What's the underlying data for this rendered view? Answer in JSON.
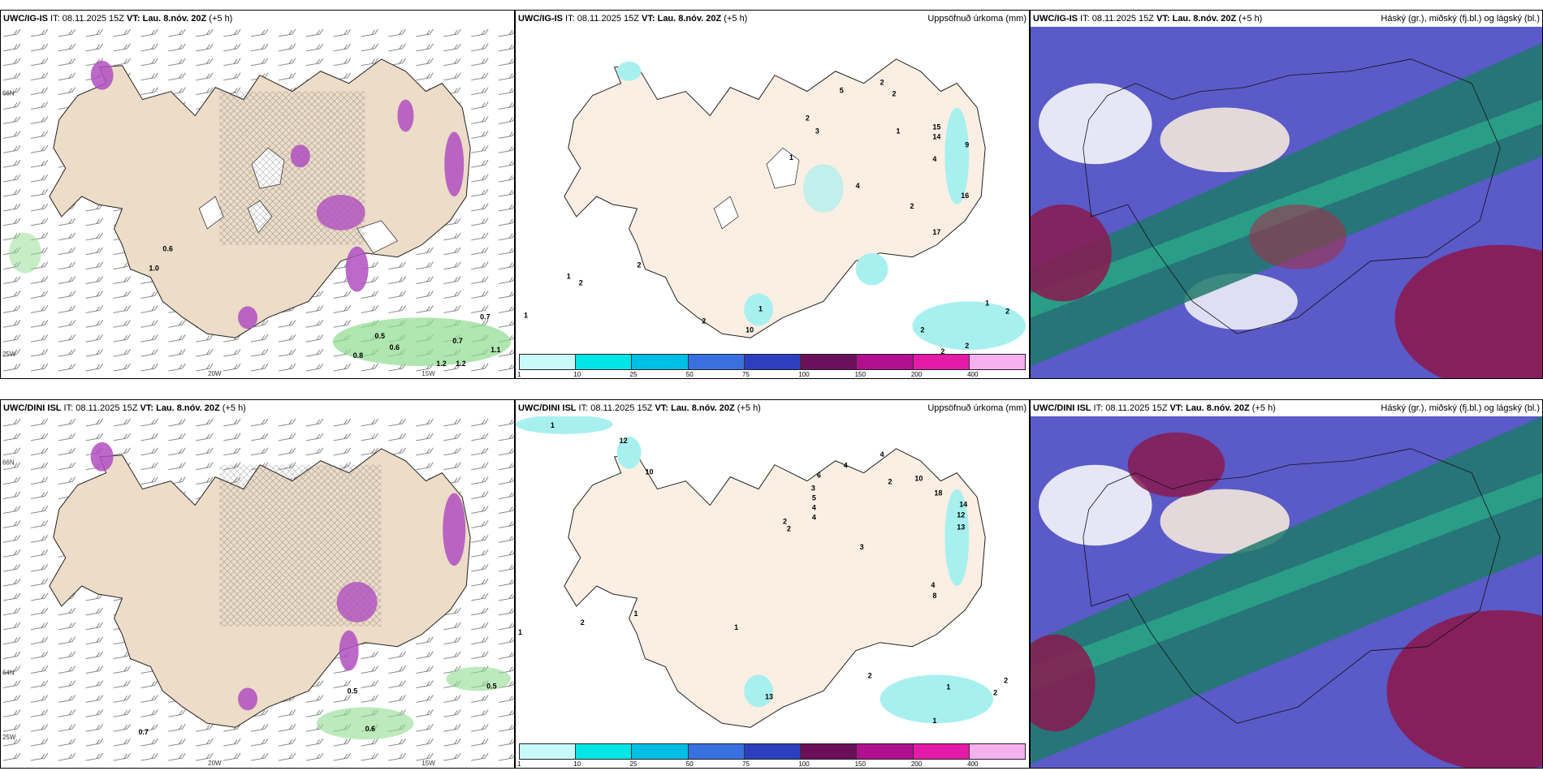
{
  "panels": {
    "top_left": {
      "model": "UWC/IG-IS",
      "rest": " IT: 08.11.2025 15Z ",
      "vt_label": "VT:",
      "vt": "Lau. 8.nóv. 20Z",
      "lead": " (+5 h)",
      "right": ""
    },
    "top_mid": {
      "model": "UWC/IG-IS",
      "rest": " IT: 08.11.2025 15Z ",
      "vt_label": "VT:",
      "vt": "Lau. 8.nóv. 20Z",
      "lead": " (+5 h)",
      "right": "Uppsöfnuð úrkoma (mm)"
    },
    "top_right": {
      "model": "UWC/IG-IS",
      "rest": " IT: 08.11.2025 15Z ",
      "vt_label": "VT:",
      "vt": "Lau. 8.nóv. 20Z",
      "lead": " (+5 h)",
      "right": "Háský (gr.), miðský (fj.bl.) og lágský (bl.)"
    },
    "bot_left": {
      "model": "UWC/DINI ISL",
      "rest": " IT: 08.11.2025 15Z ",
      "vt_label": "VT:",
      "vt": "Lau. 8.nóv. 20Z",
      "lead": " (+5 h)",
      "right": ""
    },
    "bot_mid": {
      "model": "UWC/DINI ISL",
      "rest": " IT: 08.11.2025 15Z ",
      "vt_label": "VT:",
      "vt": "Lau. 8.nóv. 20Z",
      "lead": " (+5 h)",
      "right": "Uppsöfnuð úrkoma (mm)"
    },
    "bot_right": {
      "model": "UWC/DINI ISL",
      "rest": " IT: 08.11.2025 15Z ",
      "vt_label": "VT:",
      "vt": "Lau. 8.nóv. 20Z",
      "lead": " (+5 h)",
      "right": "Háský (gr.), miðský (fj.bl.) og lágský (bl.)"
    }
  },
  "axes": {
    "lat66": "66N",
    "lat64": "64N",
    "lon20": "20W",
    "lon15": "15W",
    "lon25": "25W"
  },
  "colorbar": {
    "ticks": [
      "1",
      "10",
      "25",
      "50",
      "75",
      "100",
      "150",
      "200",
      "400"
    ],
    "colors": [
      "#c8fafa",
      "#00e5e5",
      "#00bfe6",
      "#3a6fe0",
      "#2c3fbf",
      "#6a0f5a",
      "#b0108e",
      "#e61aa8",
      "#f5b0ee"
    ]
  },
  "precip_labels_top_left": [
    "0.6",
    "1.0",
    "0.7",
    "0.5",
    "0.7",
    "0.8",
    "0.6",
    "1.1",
    "1.2",
    "1.2"
  ],
  "precip_labels_top_mid": [
    "2",
    "5",
    "2",
    "2",
    "3",
    "1",
    "15",
    "14",
    "9",
    "1",
    "4",
    "16",
    "17",
    "4",
    "2",
    "1",
    "2",
    "2",
    "1",
    "2",
    "2",
    "2",
    "2",
    "1",
    "2",
    "2",
    "2",
    "10",
    "1"
  ],
  "precip_labels_bot_left": [
    "0.5",
    "0.6",
    "0.7",
    "0.5"
  ],
  "precip_labels_bot_mid": [
    "1",
    "12",
    "10",
    "4",
    "6",
    "4",
    "2",
    "10",
    "18",
    "14",
    "12",
    "13",
    "3",
    "5",
    "4",
    "4",
    "2",
    "2",
    "3",
    "4",
    "8",
    "1",
    "2",
    "1",
    "1",
    "2",
    "2",
    "1",
    "1",
    "13",
    "2"
  ],
  "colors": {
    "land": "#ecdcc8",
    "land_mid": "#fbefe3",
    "wind": "#555555",
    "green": "#8fdc8f",
    "magenta": "#b04fc0",
    "cyan": "#a8f0f0"
  }
}
